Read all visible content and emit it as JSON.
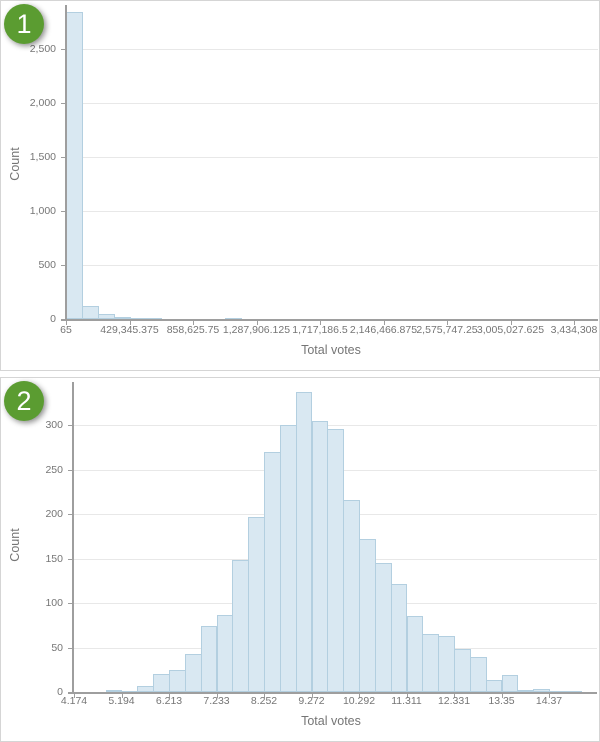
{
  "colors": {
    "bar_fill": "#d9e8f2",
    "bar_border": "#b3cfe0",
    "grid_line": "#e8e8e8",
    "axis_line": "#9e9e9e",
    "tick_text": "#757575",
    "title_text": "#757575",
    "badge_green": "#5b9c31",
    "badge_text": "#ffffff",
    "panel_border": "#d5d5d5",
    "panel_bg": "#ffffff"
  },
  "panels": [
    {
      "badge": "1",
      "y_axis_label": "Count",
      "x_axis_label": "Total votes"
    },
    {
      "badge": "2",
      "y_axis_label": "Count",
      "x_axis_label": "Total votes"
    }
  ],
  "chart_data": [
    {
      "type": "bar",
      "subtype": "histogram",
      "title": "",
      "xlabel": "Total votes",
      "ylabel": "Count",
      "grid": true,
      "legend": "none",
      "bin_start": 65,
      "bin_width": 107320.09,
      "xlim": [
        65,
        3434308
      ],
      "ylim": [
        0,
        2900
      ],
      "x_tick_labels": [
        "65",
        "429,345.375",
        "858,625.75",
        "1,287,906.125",
        "1,717,186.5",
        "2,146,466.875",
        "2,575,747.25",
        "3,005,027.625",
        "3,434,308"
      ],
      "y_ticks": [
        0,
        500,
        1000,
        1500,
        2000,
        2500
      ],
      "y_tick_labels": [
        "0",
        "500",
        "1,000",
        "1,500",
        "2,000",
        "2,500"
      ],
      "counts": [
        2840,
        120,
        45,
        22,
        10,
        6,
        4,
        3,
        2,
        2,
        5,
        4,
        2,
        1,
        1,
        1,
        0,
        0,
        1,
        0,
        0,
        0,
        0,
        0,
        0,
        0,
        0,
        0,
        0,
        0,
        0,
        1
      ]
    },
    {
      "type": "bar",
      "subtype": "histogram",
      "title": "",
      "xlabel": "Total votes",
      "ylabel": "Count",
      "grid": true,
      "legend": "none",
      "bin_start": 4.174,
      "bin_width": 0.3399,
      "xlim": [
        4.174,
        15.05
      ],
      "ylim": [
        0,
        344
      ],
      "x_tick_labels": [
        "4.174",
        "5.194",
        "6.213",
        "7.233",
        "8.252",
        "9.272",
        "10.292",
        "11.311",
        "12.331",
        "13.35",
        "14.37"
      ],
      "y_ticks": [
        0,
        50,
        100,
        150,
        200,
        250,
        300
      ],
      "y_tick_labels": [
        "0",
        "50",
        "100",
        "150",
        "200",
        "250",
        "300"
      ],
      "counts": [
        0,
        0,
        2,
        1,
        7,
        20,
        25,
        43,
        74,
        87,
        148,
        197,
        270,
        300,
        337,
        305,
        295,
        216,
        172,
        145,
        121,
        85,
        65,
        63,
        48,
        39,
        14,
        19,
        2,
        3,
        1,
        1
      ]
    }
  ]
}
